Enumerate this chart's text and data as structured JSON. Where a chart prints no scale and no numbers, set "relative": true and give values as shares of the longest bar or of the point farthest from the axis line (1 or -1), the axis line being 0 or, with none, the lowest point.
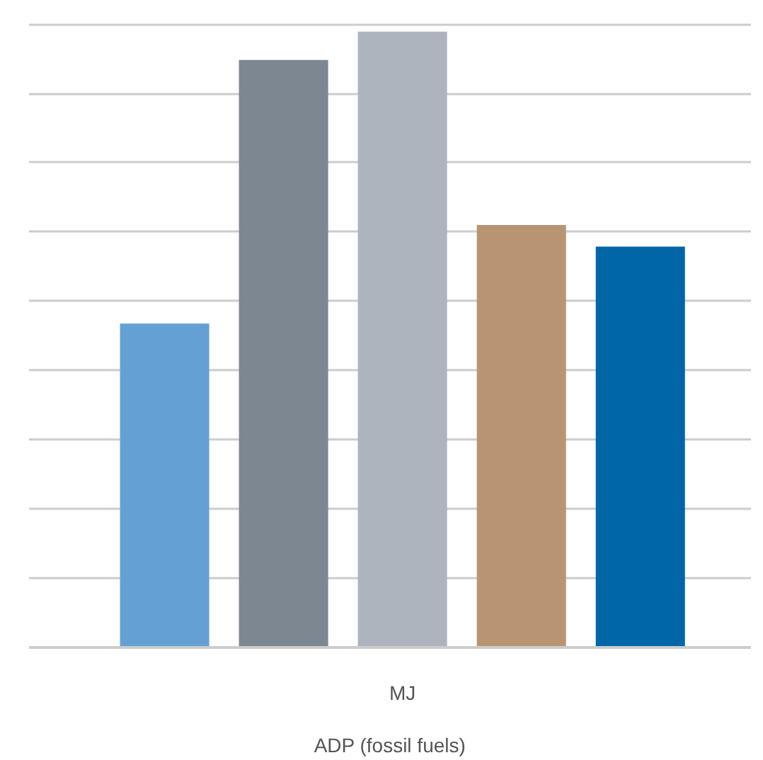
{
  "chart_data": {
    "type": "bar",
    "relative": true,
    "xlabel": "ADP (fossil fuels)",
    "categories": [
      null,
      null,
      "MJ",
      null,
      null
    ],
    "grid": "y",
    "values": [
      0.526,
      0.954,
      1,
      0.686,
      0.651
    ],
    "colors": [
      "#65a0d4",
      "#7d8791",
      "#adb4bd",
      "#b99473",
      "#0066a8"
    ]
  }
}
